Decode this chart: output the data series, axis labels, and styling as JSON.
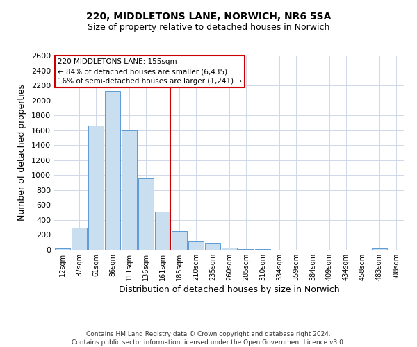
{
  "title1": "220, MIDDLETONS LANE, NORWICH, NR6 5SA",
  "title2": "Size of property relative to detached houses in Norwich",
  "xlabel": "Distribution of detached houses by size in Norwich",
  "ylabel": "Number of detached properties",
  "bin_labels": [
    "12sqm",
    "37sqm",
    "61sqm",
    "86sqm",
    "111sqm",
    "136sqm",
    "161sqm",
    "185sqm",
    "210sqm",
    "235sqm",
    "260sqm",
    "285sqm",
    "310sqm",
    "334sqm",
    "359sqm",
    "384sqm",
    "409sqm",
    "434sqm",
    "458sqm",
    "483sqm",
    "508sqm"
  ],
  "bin_values": [
    20,
    295,
    1660,
    2130,
    1595,
    960,
    510,
    250,
    120,
    95,
    30,
    10,
    5,
    3,
    2,
    1,
    1,
    0,
    0,
    15,
    0
  ],
  "bar_color": "#c9dff0",
  "bar_edge_color": "#5b9bd5",
  "marker_line_index": 6,
  "marker_line_color": "#cc0000",
  "annotation_line1": "220 MIDDLETONS LANE: 155sqm",
  "annotation_line2": "← 84% of detached houses are smaller (6,435)",
  "annotation_line3": "16% of semi-detached houses are larger (1,241) →",
  "annotation_box_edge_color": "#cc0000",
  "ylim": [
    0,
    2600
  ],
  "yticks": [
    0,
    200,
    400,
    600,
    800,
    1000,
    1200,
    1400,
    1600,
    1800,
    2000,
    2200,
    2400,
    2600
  ],
  "footer1": "Contains HM Land Registry data © Crown copyright and database right 2024.",
  "footer2": "Contains public sector information licensed under the Open Government Licence v3.0.",
  "bg_color": "#ffffff",
  "grid_color": "#d0d8e8",
  "title1_fontsize": 10,
  "title2_fontsize": 9
}
